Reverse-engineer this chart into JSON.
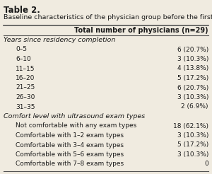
{
  "title": "Table 2.",
  "subtitle": "Baseline characteristics of the physician group before the first training block.",
  "header": "Total number of physicians (n=29)",
  "sections": [
    {
      "label": "Years since residency completion",
      "indent": false,
      "value": ""
    },
    {
      "label": "0–5",
      "indent": true,
      "value": "6 (20.7%)"
    },
    {
      "label": "6–10",
      "indent": true,
      "value": "3 (10.3%)"
    },
    {
      "label": "11–15",
      "indent": true,
      "value": "4 (13.8%)"
    },
    {
      "label": "16–20",
      "indent": true,
      "value": "5 (17.2%)"
    },
    {
      "label": "21–25",
      "indent": true,
      "value": "6 (20.7%)"
    },
    {
      "label": "26–30",
      "indent": true,
      "value": "3 (10.3%)"
    },
    {
      "label": "31–35",
      "indent": true,
      "value": "2 (6.9%)"
    },
    {
      "label": "Comfort level with ultrasound exam types",
      "indent": false,
      "value": ""
    },
    {
      "label": "Not comfortable with any exam types",
      "indent": true,
      "value": "18 (62.1%)"
    },
    {
      "label": "Comfortable with 1–2 exam types",
      "indent": true,
      "value": "3 (10.3%)"
    },
    {
      "label": "Comfortable with 3–4 exam types",
      "indent": true,
      "value": "5 (17.2%)"
    },
    {
      "label": "Comfortable with 5–6 exam types",
      "indent": true,
      "value": "3 (10.3%)"
    },
    {
      "label": "Comfortable with 7–8 exam types",
      "indent": true,
      "value": "0"
    }
  ],
  "bg_color": "#f0ebe0",
  "text_color": "#1a1a1a",
  "header_line_color": "#555555",
  "title_fontsize": 8.5,
  "subtitle_fontsize": 6.8,
  "header_fontsize": 7.0,
  "row_fontsize": 6.5,
  "section_fontsize": 6.8
}
